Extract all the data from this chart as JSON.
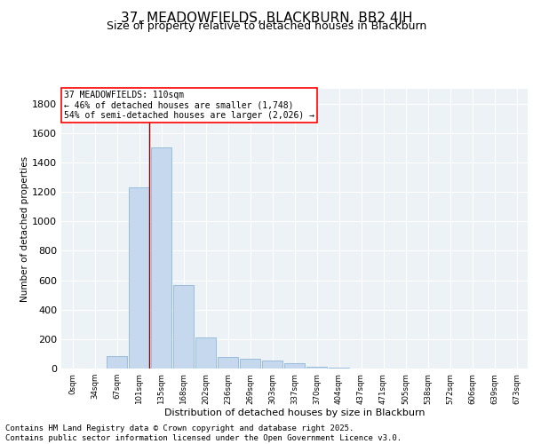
{
  "title1": "37, MEADOWFIELDS, BLACKBURN, BB2 4JH",
  "title2": "Size of property relative to detached houses in Blackburn",
  "xlabel": "Distribution of detached houses by size in Blackburn",
  "ylabel": "Number of detached properties",
  "categories": [
    "0sqm",
    "34sqm",
    "67sqm",
    "101sqm",
    "135sqm",
    "168sqm",
    "202sqm",
    "236sqm",
    "269sqm",
    "303sqm",
    "337sqm",
    "370sqm",
    "404sqm",
    "437sqm",
    "471sqm",
    "505sqm",
    "538sqm",
    "572sqm",
    "606sqm",
    "639sqm",
    "673sqm"
  ],
  "values": [
    0,
    0,
    85,
    1230,
    1500,
    565,
    210,
    80,
    65,
    55,
    35,
    15,
    5,
    3,
    2,
    1,
    0,
    0,
    0,
    0,
    0
  ],
  "bar_color": "#c5d8ed",
  "bar_edge_color": "#7fb0d5",
  "ylim": [
    0,
    1900
  ],
  "yticks": [
    0,
    200,
    400,
    600,
    800,
    1000,
    1200,
    1400,
    1600,
    1800
  ],
  "annotation_text": "37 MEADOWFIELDS: 110sqm\n← 46% of detached houses are smaller (1,748)\n54% of semi-detached houses are larger (2,026) →",
  "footer_line1": "Contains HM Land Registry data © Crown copyright and database right 2025.",
  "footer_line2": "Contains public sector information licensed under the Open Government Licence v3.0.",
  "bg_color": "#edf2f7",
  "grid_color": "#ffffff",
  "title_fontsize": 11,
  "subtitle_fontsize": 9,
  "footer_fontsize": 6.5
}
